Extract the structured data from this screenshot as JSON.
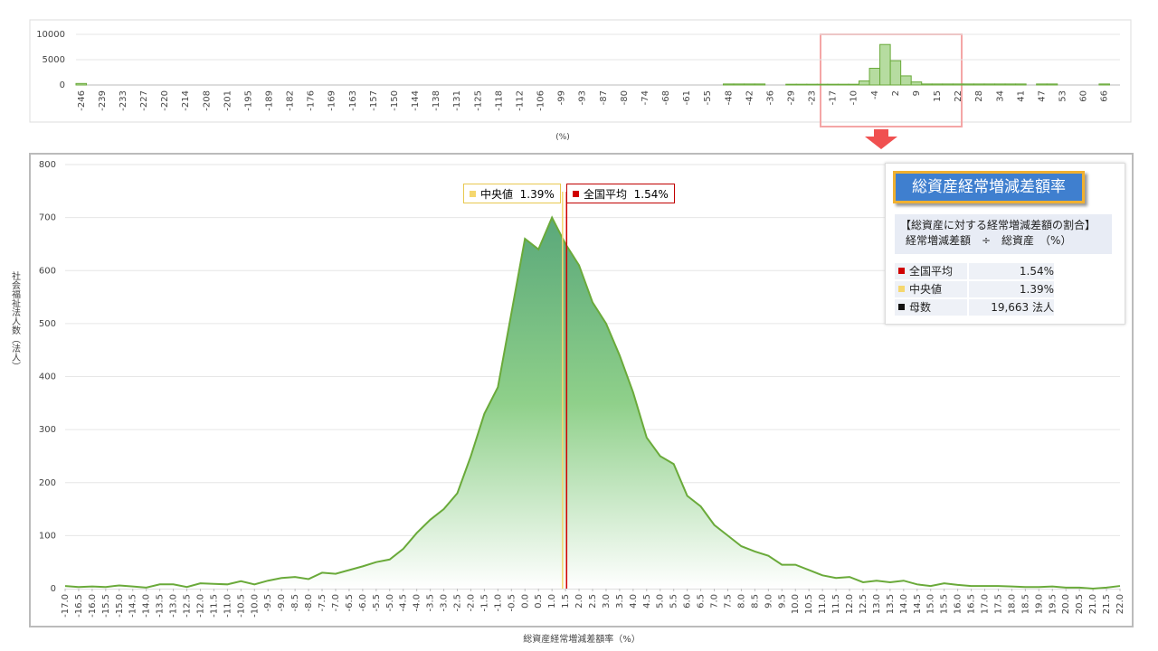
{
  "chart_data": [
    {
      "type": "bar",
      "color": "#6aaa3a",
      "x_label": "(%)",
      "categories": [
        "-246",
        null,
        "-239",
        null,
        "-233",
        null,
        "-227",
        null,
        "-220",
        null,
        "-214",
        null,
        "-208",
        null,
        "-201",
        null,
        "-195",
        null,
        "-189",
        null,
        "-182",
        null,
        "-176",
        null,
        "-169",
        null,
        "-163",
        null,
        "-157",
        null,
        "-150",
        null,
        "-144",
        null,
        "-138",
        null,
        "-131",
        null,
        "-125",
        null,
        "-118",
        null,
        "-112",
        null,
        "-106",
        null,
        "-99",
        null,
        "-93",
        null,
        "-87",
        null,
        "-80",
        null,
        "-74",
        null,
        "-68",
        null,
        "-61",
        null,
        "-55",
        null,
        "-48",
        null,
        "-42",
        null,
        "-36",
        null,
        "-29",
        null,
        "-23",
        null,
        "-17",
        null,
        "-10",
        null,
        "-4",
        null,
        "2",
        null,
        "9",
        null,
        "15",
        null,
        "22",
        null,
        "28",
        null,
        "34",
        null,
        "41",
        null,
        "47",
        null,
        "53",
        null,
        "60",
        null,
        "66",
        null
      ],
      "values": [
        300,
        0,
        0,
        0,
        0,
        0,
        0,
        0,
        0,
        0,
        0,
        0,
        0,
        0,
        0,
        0,
        0,
        0,
        0,
        0,
        0,
        0,
        0,
        0,
        0,
        0,
        0,
        0,
        0,
        0,
        0,
        0,
        0,
        0,
        0,
        0,
        0,
        0,
        0,
        0,
        0,
        0,
        0,
        0,
        0,
        0,
        0,
        0,
        0,
        0,
        0,
        0,
        0,
        0,
        0,
        0,
        0,
        0,
        0,
        0,
        0,
        0,
        200,
        200,
        200,
        200,
        0,
        0,
        150,
        150,
        150,
        150,
        150,
        150,
        150,
        800,
        3300,
        8000,
        4800,
        1800,
        600,
        200,
        200,
        200,
        200,
        200,
        200,
        200,
        200,
        200,
        200,
        0,
        200,
        200,
        0,
        0,
        0,
        0,
        200,
        0
      ],
      "ylim": [
        0,
        10000
      ],
      "yticks": [
        0,
        5000,
        10000
      ],
      "grid": true
    },
    {
      "type": "area",
      "color": "#6aaa3a",
      "x_label": "総資産経常増減差額率（%）",
      "y_label": "社会福祉法人数（法人）",
      "x": [
        -17,
        -16.5,
        -16,
        -15.5,
        -15,
        -14.5,
        -14,
        -13.5,
        -13,
        -12.5,
        -12,
        -11.5,
        -11,
        -10.5,
        -10,
        -9.5,
        -9,
        -8.5,
        -8,
        -7.5,
        -7,
        -6.5,
        -6,
        -5.5,
        -5,
        -4.5,
        -4,
        -3.5,
        -3,
        -2.5,
        -2,
        -1.5,
        -1,
        -0.5,
        0,
        0.5,
        1,
        1.5,
        2,
        2.5,
        3,
        3.5,
        4,
        4.5,
        5,
        5.5,
        6,
        6.5,
        7,
        7.5,
        8,
        8.5,
        9,
        9.5,
        10,
        10.5,
        11,
        11.5,
        12,
        12.5,
        13,
        13.5,
        14,
        14.5,
        15,
        15.5,
        16,
        16.5,
        17,
        17.5,
        18,
        18.5,
        19,
        19.5,
        20,
        20.5,
        21,
        21.5,
        22
      ],
      "values": [
        5,
        3,
        4,
        3,
        6,
        4,
        2,
        8,
        8,
        3,
        10,
        9,
        8,
        14,
        8,
        15,
        20,
        22,
        18,
        30,
        28,
        35,
        42,
        50,
        55,
        75,
        105,
        130,
        150,
        180,
        250,
        330,
        380,
        520,
        660,
        640,
        700,
        650,
        610,
        540,
        500,
        440,
        370,
        285,
        250,
        235,
        175,
        155,
        120,
        100,
        80,
        70,
        62,
        45,
        45,
        35,
        25,
        20,
        22,
        12,
        15,
        12,
        15,
        8,
        5,
        10,
        7,
        5,
        5,
        5,
        4,
        3,
        3,
        4,
        2,
        2,
        0,
        2,
        5
      ],
      "xlim": [
        -17,
        22
      ],
      "xticks": [
        {
          "value": -17,
          "label": "-17.0"
        },
        -16.5,
        {
          "value": -16,
          "label": "-16.0"
        },
        -15.5,
        {
          "value": -15,
          "label": "-15.0"
        },
        -14.5,
        {
          "value": -14,
          "label": "-14.0"
        },
        -13.5,
        {
          "value": -13,
          "label": "-13.0"
        },
        -12.5,
        {
          "value": -12,
          "label": "-12.0"
        },
        -11.5,
        {
          "value": -11,
          "label": "-11.0"
        },
        -10.5,
        {
          "value": -10,
          "label": "-10.0"
        },
        -9.5,
        {
          "value": -9,
          "label": "-9.0"
        },
        -8.5,
        {
          "value": -8,
          "label": "-8.0"
        },
        -7.5,
        {
          "value": -7,
          "label": "-7.0"
        },
        -6.5,
        {
          "value": -6,
          "label": "-6.0"
        },
        -5.5,
        {
          "value": -5,
          "label": "-5.0"
        },
        -4.5,
        {
          "value": -4,
          "label": "-4.0"
        },
        -3.5,
        {
          "value": -3,
          "label": "-3.0"
        },
        -2.5,
        {
          "value": -2,
          "label": "-2.0"
        },
        -1.5,
        {
          "value": -1,
          "label": "-1.0"
        },
        -0.5,
        {
          "value": 0,
          "label": "0.0"
        },
        0.5,
        {
          "value": 1,
          "label": "1.0"
        },
        1.5,
        {
          "value": 2,
          "label": "2.0"
        },
        2.5,
        {
          "value": 3,
          "label": "3.0"
        },
        3.5,
        {
          "value": 4,
          "label": "4.0"
        },
        4.5,
        {
          "value": 5,
          "label": "5.0"
        },
        5.5,
        {
          "value": 6,
          "label": "6.0"
        },
        6.5,
        {
          "value": 7,
          "label": "7.0"
        },
        7.5,
        {
          "value": 8,
          "label": "8.0"
        },
        8.5,
        {
          "value": 9,
          "label": "9.0"
        },
        9.5,
        {
          "value": 10,
          "label": "10.0"
        },
        10.5,
        {
          "value": 11,
          "label": "11.0"
        },
        11.5,
        {
          "value": 12,
          "label": "12.0"
        },
        12.5,
        {
          "value": 13,
          "label": "13.0"
        },
        13.5,
        {
          "value": 14,
          "label": "14.0"
        },
        14.5,
        {
          "value": 15,
          "label": "15.0"
        },
        15.5,
        {
          "value": 16,
          "label": "16.0"
        },
        16.5,
        {
          "value": 17,
          "label": "17.0"
        },
        17.5,
        {
          "value": 18,
          "label": "18.0"
        },
        18.5,
        {
          "value": 19,
          "label": "19.0"
        },
        19.5,
        {
          "value": 20,
          "label": "20.0"
        },
        20.5,
        {
          "value": 21,
          "label": "21.0"
        },
        21.5,
        {
          "value": 22,
          "label": "22.0"
        }
      ],
      "ylim": [
        0,
        800
      ],
      "yticks": [
        0,
        100,
        200,
        300,
        400,
        500,
        600,
        700,
        800
      ],
      "grid": true,
      "annotations": [
        {
          "label": "中央値",
          "value": 1.39,
          "value_label": "1.39%",
          "color": "#f5d76e"
        },
        {
          "label": "全国平均",
          "value": 1.54,
          "value_label": "1.54%",
          "color": "#d00000"
        }
      ]
    }
  ],
  "panel": {
    "title": "総資産経常増減差額率",
    "formula": [
      "【総資産に対する経常増減差額の割合】",
      "経常増減差額　÷　総資産　（%）"
    ],
    "rows": [
      {
        "label": "全国平均",
        "value": "1.54%",
        "color": "#d00000"
      },
      {
        "label": "中央値",
        "value": "1.39%",
        "color": "#f5d76e"
      },
      {
        "label": "母数",
        "value": "19,663 法人",
        "color": "#111111"
      }
    ]
  }
}
